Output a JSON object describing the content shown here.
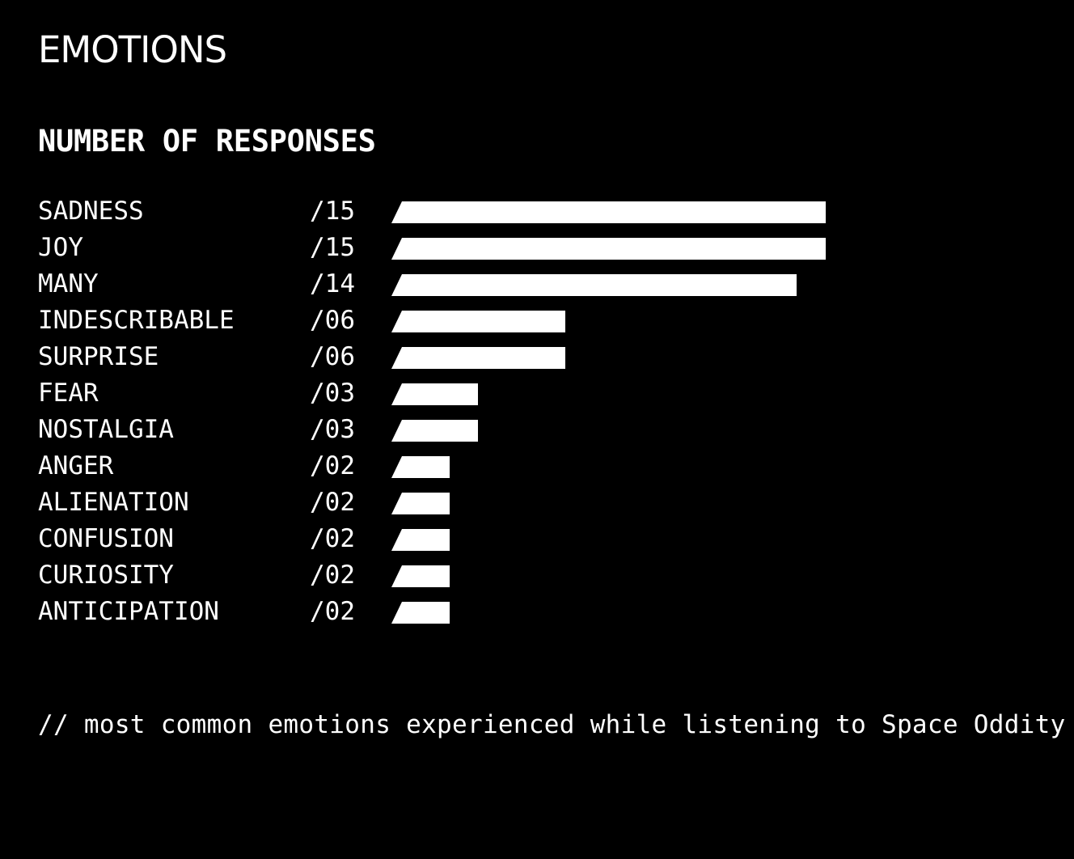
{
  "title": "EMOTIONS",
  "subtitle": "NUMBER OF RESPONSES",
  "caption": "// most common emotions experienced while listening to Space Oddity",
  "colors": {
    "background": "#000000",
    "foreground": "#ffffff"
  },
  "chart_data": {
    "type": "bar",
    "orientation": "horizontal",
    "title": "EMOTIONS",
    "subtitle": "NUMBER OF RESPONSES",
    "categories": [
      "SADNESS",
      "JOY",
      "MANY",
      "INDESCRIBABLE",
      "SURPRISE",
      "FEAR",
      "NOSTALGIA",
      "ANGER",
      "ALIENATION",
      "CONFUSION",
      "CURIOSITY",
      "ANTICIPATION"
    ],
    "value_labels": [
      "/15",
      "/15",
      "/14",
      "/06",
      "/06",
      "/03",
      "/03",
      "/02",
      "/02",
      "/02",
      "/02",
      "/02"
    ],
    "values": [
      15,
      15,
      14,
      6,
      6,
      3,
      3,
      2,
      2,
      2,
      2,
      2
    ],
    "xlim": [
      0,
      15
    ],
    "grid": false,
    "legend": "none"
  }
}
